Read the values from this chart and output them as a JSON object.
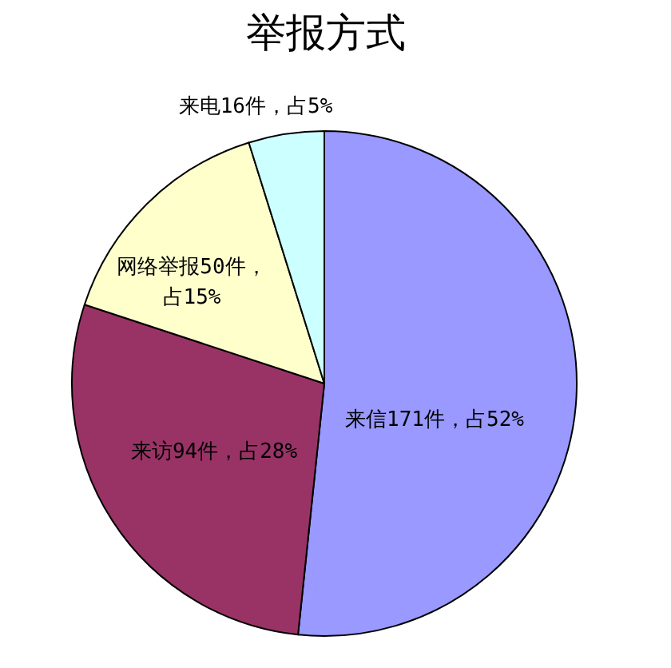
{
  "chart_data": {
    "type": "pie",
    "title": "举报方式",
    "categories": [
      "来信171件，占52%",
      "来访94件，占28%",
      "网络举报50件，占15%",
      "来电16件，占5%"
    ],
    "values": [
      171,
      94,
      50,
      16
    ],
    "colors": [
      "#9999ff",
      "#993366",
      "#ffffcc",
      "#ccffff"
    ]
  }
}
